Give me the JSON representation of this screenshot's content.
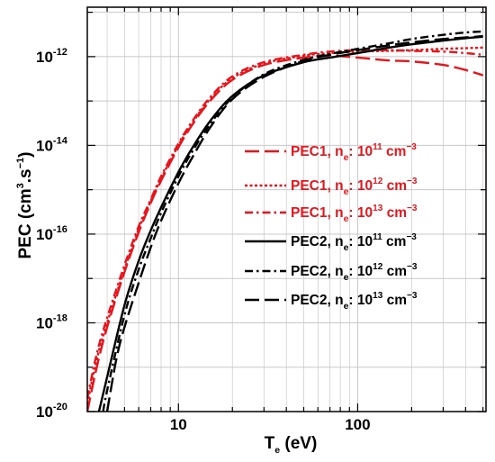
{
  "chart_data": {
    "type": "line",
    "x_scale": "log",
    "y_scale": "log",
    "xlim": [
      3.1,
      520
    ],
    "ylim": [
      1e-20,
      1.3e-11
    ],
    "grid": true,
    "legend_position": "center-right",
    "xlabel": {
      "main": "T",
      "sub": "e",
      "rest": " (eV)"
    },
    "ylabel": {
      "prefix": "PEC (cm",
      "sup1": "3",
      "mid": ".s",
      "sup2": "−1",
      "suffix": ")"
    },
    "x_ticks": [
      {
        "value": 10,
        "label": "10"
      },
      {
        "value": 100,
        "label": "100"
      }
    ],
    "y_ticks": [
      {
        "value": 1e-12,
        "base": "10",
        "exp": "-12"
      },
      {
        "value": 1e-14,
        "base": "10",
        "exp": "-14"
      },
      {
        "value": 1e-16,
        "base": "10",
        "exp": "-16"
      },
      {
        "value": 1e-18,
        "base": "10",
        "exp": "-18"
      },
      {
        "value": 1e-20,
        "base": "10",
        "exp": "-20"
      }
    ],
    "colors": {
      "pec1": "#e8141b",
      "pec2": "#000000"
    },
    "series": [
      {
        "id": "pec1-1e11",
        "legend": {
          "name": "PEC1, n",
          "sub": "e",
          "colon": ": 10",
          "exp": "11",
          "unit": " cm",
          "unit_exp": "−3"
        },
        "group": "pec1",
        "style": "longdash",
        "x": [
          3.1,
          3.5,
          4,
          5,
          6,
          7,
          8,
          10,
          12,
          15,
          20,
          30,
          50,
          70,
          100,
          150,
          200,
          300,
          400,
          500
        ],
        "y": [
          1e-20,
          1e-19,
          8e-19,
          1.4e-17,
          1.1e-16,
          5e-16,
          1.6e-15,
          9e-15,
          3e-14,
          1e-13,
          3e-13,
          6.5e-13,
          9.5e-13,
          1.05e-12,
          9.5e-13,
          8.2e-13,
          7.8e-13,
          6.5e-13,
          5e-13,
          3.8e-13
        ]
      },
      {
        "id": "pec1-1e12",
        "legend": {
          "name": "PEC1, n",
          "sub": "e",
          "colon": ": 10",
          "exp": "12",
          "unit": " cm",
          "unit_exp": "−3"
        },
        "group": "pec1",
        "style": "dotted",
        "x": [
          3.1,
          3.5,
          4,
          5,
          6,
          7,
          8,
          10,
          12,
          15,
          20,
          30,
          50,
          70,
          100,
          150,
          200,
          300,
          400,
          500
        ],
        "y": [
          1.5e-20,
          1.5e-19,
          1e-18,
          1.6e-17,
          1.3e-16,
          5.5e-16,
          1.8e-15,
          1e-14,
          3.3e-14,
          1.1e-13,
          3.3e-13,
          7e-13,
          1.05e-12,
          1.2e-12,
          1.3e-12,
          1.35e-12,
          1.4e-12,
          1.5e-12,
          1.55e-12,
          1.6e-12
        ]
      },
      {
        "id": "pec1-1e13",
        "legend": {
          "name": "PEC1, n",
          "sub": "e",
          "colon": ": 10",
          "exp": "13",
          "unit": " cm",
          "unit_exp": "−3"
        },
        "group": "pec1",
        "style": "dashdot",
        "x": [
          3.1,
          3.5,
          4,
          5,
          6,
          7,
          8,
          10,
          12,
          15,
          20,
          30,
          50,
          70,
          100,
          150,
          200,
          300,
          400,
          500
        ],
        "y": [
          2e-20,
          2e-19,
          1.3e-18,
          2e-17,
          1.5e-16,
          6e-16,
          2e-15,
          1.1e-14,
          3.6e-14,
          1.2e-13,
          3.6e-13,
          7.5e-13,
          1.1e-12,
          1.3e-12,
          1.4e-12,
          1.4e-12,
          1.35e-12,
          1.3e-12,
          1.2e-12,
          1.1e-12
        ]
      },
      {
        "id": "pec2-1e11",
        "legend": {
          "name": "PEC2, n",
          "sub": "e",
          "colon": ": 10",
          "exp": "11",
          "unit": " cm",
          "unit_exp": "−3"
        },
        "group": "pec2",
        "style": "solid",
        "x": [
          3.6,
          4,
          5,
          6,
          7,
          8,
          10,
          12,
          15,
          20,
          30,
          50,
          70,
          100,
          150,
          200,
          300,
          400,
          500
        ],
        "y": [
          1e-20,
          6e-20,
          2.5e-18,
          2.5e-17,
          1.2e-16,
          4e-16,
          2.5e-15,
          9e-15,
          3.5e-14,
          1.3e-13,
          3.8e-13,
          7.5e-13,
          9.5e-13,
          1.2e-12,
          1.6e-12,
          1.9e-12,
          2.3e-12,
          2.6e-12,
          2.8e-12
        ]
      },
      {
        "id": "pec2-1e12",
        "legend": {
          "name": "PEC2, n",
          "sub": "e",
          "colon": ": 10",
          "exp": "12",
          "unit": " cm",
          "unit_exp": "−3"
        },
        "group": "pec2",
        "style": "dashdot",
        "x": [
          3.8,
          4,
          5,
          6,
          7,
          8,
          10,
          12,
          15,
          20,
          30,
          50,
          70,
          100,
          150,
          200,
          300,
          400,
          500
        ],
        "y": [
          1e-20,
          3e-20,
          1.5e-18,
          1.6e-17,
          8e-17,
          3e-16,
          2e-15,
          7.5e-15,
          3e-14,
          1.2e-13,
          4e-13,
          8.5e-13,
          1.15e-12,
          1.5e-12,
          2e-12,
          2.5e-12,
          3.1e-12,
          3.5e-12,
          3.7e-12
        ]
      },
      {
        "id": "pec2-1e13",
        "legend": {
          "name": "PEC2, n",
          "sub": "e",
          "colon": ": 10",
          "exp": "13",
          "unit": " cm",
          "unit_exp": "−3"
        },
        "group": "pec2",
        "style": "longdash",
        "x": [
          4.0,
          4.5,
          5,
          6,
          7,
          8,
          10,
          12,
          15,
          20,
          30,
          50,
          70,
          100,
          150,
          200,
          300,
          400,
          500
        ],
        "y": [
          1e-20,
          1.5e-19,
          8e-19,
          8e-18,
          5e-17,
          2e-16,
          1.4e-15,
          5.5e-15,
          2.5e-14,
          1.1e-13,
          3.5e-13,
          8e-13,
          1.1e-12,
          1.4e-12,
          1.8e-12,
          2.1e-12,
          2.5e-12,
          2.7e-12,
          2.9e-12
        ]
      }
    ]
  }
}
